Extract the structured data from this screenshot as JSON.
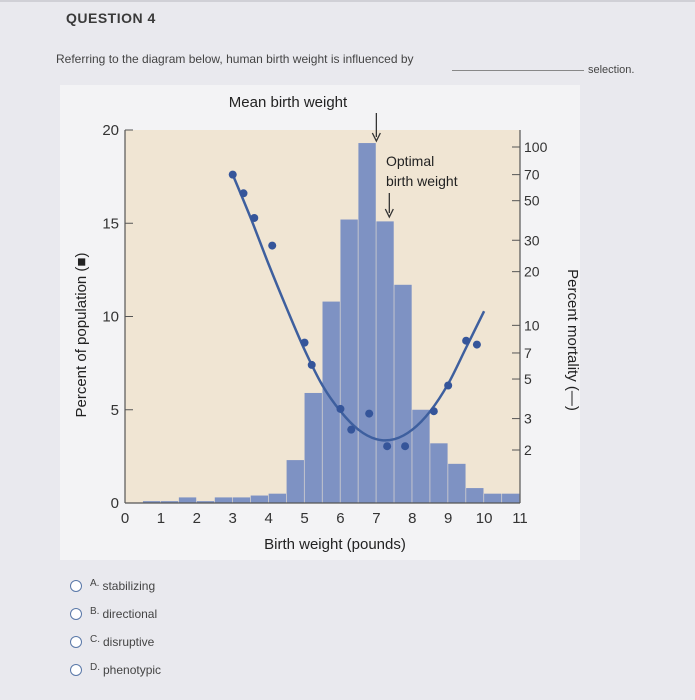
{
  "question": {
    "title": "QUESTION 4",
    "prompt": "Referring to the diagram below, human birth weight is influenced by",
    "suffix": "selection.",
    "options": [
      {
        "letter": "A.",
        "label": "stabilizing"
      },
      {
        "letter": "B.",
        "label": "directional"
      },
      {
        "letter": "C.",
        "label": "disruptive"
      },
      {
        "letter": "D.",
        "label": "phenotypic"
      }
    ]
  },
  "chart_data": {
    "type": "bar",
    "title": "",
    "xlabel": "Birth weight (pounds)",
    "ylabel": "Percent of population (■)",
    "y2label": "Percent mortality (—)",
    "annotations": [
      "Mean birth weight",
      "Optimal birth weight"
    ],
    "mean_birth_weight": 7,
    "optimal_birth_weight": 7.5,
    "xlim": [
      0,
      11
    ],
    "ylim": [
      0,
      20
    ],
    "x_ticks": [
      0,
      1,
      2,
      3,
      4,
      5,
      6,
      7,
      8,
      9,
      10,
      11
    ],
    "y_ticks": [
      0,
      5,
      10,
      15,
      20
    ],
    "y2_ticks": [
      2,
      3,
      5,
      7,
      10,
      20,
      30,
      50,
      70,
      100
    ],
    "bars": {
      "bin_width": 0.5,
      "x_start": [
        0.5,
        1.0,
        1.5,
        2.0,
        2.5,
        3.0,
        3.5,
        4.0,
        4.5,
        5.0,
        5.5,
        6.0,
        6.5,
        7.0,
        7.5,
        8.0,
        8.5,
        9.0,
        9.5,
        10.0,
        10.5
      ],
      "values": [
        0.1,
        0.1,
        0.3,
        0.1,
        0.3,
        0.3,
        0.4,
        0.5,
        2.3,
        5.9,
        10.8,
        15.2,
        19.3,
        15.1,
        11.7,
        5.0,
        3.2,
        2.1,
        0.8,
        0.5,
        0.5
      ]
    },
    "mortality_points": {
      "x": [
        3.0,
        3.3,
        3.6,
        4.1,
        5.0,
        5.2,
        6.0,
        6.3,
        6.8,
        7.3,
        7.8,
        8.6,
        9.0,
        9.5,
        9.8
      ],
      "y": [
        70,
        55,
        40,
        28,
        8,
        6,
        3.4,
        2.6,
        3.2,
        2.1,
        2.1,
        3.3,
        4.6,
        8.2,
        7.8
      ]
    },
    "mortality_curve": {
      "x": [
        3.0,
        3.5,
        4.0,
        4.5,
        5.0,
        5.5,
        6.0,
        6.5,
        7.0,
        7.5,
        8.0,
        8.5,
        9.0,
        9.5,
        10.0
      ],
      "y": [
        70,
        40,
        22,
        12.5,
        7.3,
        4.6,
        3.3,
        2.6,
        2.3,
        2.3,
        2.6,
        3.3,
        4.7,
        7.5,
        12
      ]
    },
    "colors": {
      "bars": "#7e92c3",
      "curve": "#3e5f9e",
      "points": "#35559a",
      "plot_bg": "#f0e5d3"
    }
  }
}
